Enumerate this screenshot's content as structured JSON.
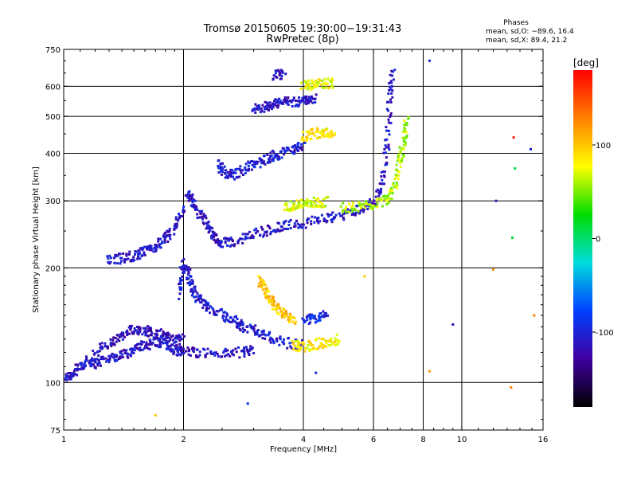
{
  "chart_data": {
    "type": "scatter",
    "title_line1": "Tromsø 20150605 19:30:00−19:31:43",
    "title_line2": "RwPretec (8p)",
    "stats": {
      "heading": "Phases",
      "line_o": "mean, sd,O: −89.6, 16.4",
      "line_x": "mean, sd,X:  89.4, 21.2"
    },
    "xlabel": "Frequency [MHz]",
    "ylabel": "Stationary phase Virtual Height [km]",
    "x_scale": "log",
    "y_scale": "log",
    "xlim": [
      1,
      16
    ],
    "ylim": [
      75,
      750
    ],
    "x_ticks": [
      1,
      2,
      4,
      6,
      8,
      10,
      16
    ],
    "y_ticks": [
      75,
      100,
      200,
      300,
      400,
      500,
      600,
      750
    ],
    "x_grid": [
      2,
      4,
      6,
      8,
      10
    ],
    "y_grid": [
      100,
      200,
      300,
      400,
      500,
      600
    ],
    "grid": true,
    "colorbar": {
      "label": "[deg]",
      "range": [
        -180,
        180
      ],
      "ticks": [
        100,
        0,
        -100
      ],
      "colors": [
        "#ff0000",
        "#ff8000",
        "#ffff00",
        "#00dd00",
        "#00dddd",
        "#0040ff",
        "#4000a0",
        "#000000"
      ]
    },
    "traces": [
      {
        "phase": -110,
        "points": [
          [
            1.0,
            103
          ],
          [
            1.05,
            105
          ],
          [
            1.1,
            110
          ],
          [
            1.15,
            114
          ],
          [
            1.2,
            112
          ],
          [
            1.3,
            116
          ],
          [
            1.4,
            118
          ],
          [
            1.5,
            122
          ],
          [
            1.6,
            125
          ],
          [
            1.7,
            128
          ],
          [
            1.8,
            126
          ],
          [
            1.9,
            122
          ],
          [
            2.0,
            121
          ],
          [
            2.2,
            120
          ],
          [
            2.5,
            119
          ],
          [
            2.8,
            120
          ],
          [
            3.0,
            122
          ]
        ]
      },
      {
        "phase": -115,
        "points": [
          [
            1.2,
            120
          ],
          [
            1.3,
            126
          ],
          [
            1.4,
            132
          ],
          [
            1.5,
            138
          ],
          [
            1.6,
            137
          ],
          [
            1.7,
            135
          ],
          [
            1.8,
            132
          ],
          [
            1.9,
            129
          ],
          [
            2.0,
            130
          ]
        ]
      },
      {
        "phase": -105,
        "points": [
          [
            1.95,
            170
          ],
          [
            2.0,
            205
          ],
          [
            2.05,
            195
          ],
          [
            2.1,
            175
          ],
          [
            2.2,
            165
          ],
          [
            2.3,
            158
          ],
          [
            2.5,
            150
          ],
          [
            2.7,
            145
          ],
          [
            2.8,
            140
          ],
          [
            3.0,
            138
          ],
          [
            3.2,
            133
          ],
          [
            3.5,
            128
          ],
          [
            4.0,
            125
          ]
        ]
      },
      {
        "phase": -110,
        "points": [
          [
            1.3,
            210
          ],
          [
            1.4,
            212
          ],
          [
            1.5,
            215
          ],
          [
            1.6,
            220
          ],
          [
            1.7,
            228
          ],
          [
            1.8,
            238
          ],
          [
            1.9,
            255
          ],
          [
            2.0,
            285
          ]
        ]
      },
      {
        "phase": -110,
        "points": [
          [
            2.05,
            310
          ],
          [
            2.1,
            300
          ],
          [
            2.2,
            275
          ],
          [
            2.3,
            255
          ],
          [
            2.4,
            240
          ],
          [
            2.5,
            232
          ],
          [
            2.7,
            235
          ],
          [
            3.0,
            245
          ],
          [
            3.3,
            252
          ],
          [
            3.6,
            258
          ],
          [
            4.0,
            262
          ],
          [
            4.5,
            268
          ],
          [
            5.0,
            275
          ],
          [
            5.5,
            285
          ],
          [
            6.0,
            295
          ],
          [
            6.3,
            330
          ],
          [
            6.5,
            420
          ],
          [
            6.6,
            560
          ],
          [
            6.7,
            660
          ]
        ]
      },
      {
        "phase": 70,
        "points": [
          [
            3.6,
            290
          ],
          [
            3.8,
            292
          ],
          [
            4.0,
            295
          ],
          [
            4.3,
            297
          ],
          [
            4.6,
            298
          ]
        ]
      },
      {
        "phase": 60,
        "points": [
          [
            5.0,
            288
          ],
          [
            5.5,
            290
          ],
          [
            6.0,
            293
          ],
          [
            6.5,
            305
          ],
          [
            6.8,
            330
          ],
          [
            7.0,
            380
          ],
          [
            7.2,
            440
          ],
          [
            7.3,
            500
          ]
        ]
      },
      {
        "phase": -105,
        "points": [
          [
            2.45,
            375
          ],
          [
            2.55,
            355
          ],
          [
            2.7,
            350
          ],
          [
            2.9,
            370
          ],
          [
            3.1,
            380
          ],
          [
            3.3,
            390
          ],
          [
            3.5,
            400
          ],
          [
            3.8,
            410
          ],
          [
            4.0,
            415
          ]
        ]
      },
      {
        "phase": 85,
        "points": [
          [
            4.0,
            440
          ],
          [
            4.2,
            450
          ],
          [
            4.5,
            455
          ],
          [
            4.8,
            452
          ]
        ]
      },
      {
        "phase": -110,
        "points": [
          [
            3.0,
            520
          ],
          [
            3.2,
            530
          ],
          [
            3.4,
            540
          ],
          [
            3.6,
            548
          ],
          [
            3.9,
            545
          ],
          [
            4.1,
            552
          ],
          [
            4.3,
            560
          ]
        ]
      },
      {
        "phase": 75,
        "points": [
          [
            4.0,
            600
          ],
          [
            4.2,
            605
          ],
          [
            4.5,
            610
          ],
          [
            4.8,
            612
          ]
        ]
      },
      {
        "phase": -108,
        "points": [
          [
            3.4,
            640
          ],
          [
            3.6,
            645
          ]
        ]
      },
      {
        "phase": 100,
        "points": [
          [
            3.1,
            185
          ],
          [
            3.2,
            178
          ],
          [
            3.3,
            165
          ],
          [
            3.4,
            158
          ],
          [
            3.6,
            150
          ],
          [
            3.8,
            145
          ]
        ]
      },
      {
        "phase": 85,
        "points": [
          [
            3.8,
            125
          ],
          [
            4.0,
            124
          ],
          [
            4.3,
            126
          ],
          [
            4.6,
            128
          ],
          [
            4.9,
            130
          ]
        ]
      },
      {
        "phase": -95,
        "points": [
          [
            4.0,
            145
          ],
          [
            4.3,
            148
          ],
          [
            4.6,
            150
          ]
        ]
      }
    ],
    "scattered": [
      {
        "x": 8.3,
        "y": 700,
        "phase": -100
      },
      {
        "x": 12.2,
        "y": 300,
        "phase": -110
      },
      {
        "x": 13.5,
        "y": 440,
        "phase": 170
      },
      {
        "x": 13.6,
        "y": 365,
        "phase": 10
      },
      {
        "x": 14.9,
        "y": 410,
        "phase": -100
      },
      {
        "x": 13.4,
        "y": 240,
        "phase": 15
      },
      {
        "x": 15.2,
        "y": 150,
        "phase": 130
      },
      {
        "x": 9.5,
        "y": 142,
        "phase": -120
      },
      {
        "x": 8.3,
        "y": 107,
        "phase": 120
      },
      {
        "x": 12.0,
        "y": 198,
        "phase": 120
      },
      {
        "x": 13.3,
        "y": 97,
        "phase": 130
      },
      {
        "x": 1.7,
        "y": 82,
        "phase": 100
      },
      {
        "x": 2.9,
        "y": 88,
        "phase": -90
      },
      {
        "x": 5.7,
        "y": 190,
        "phase": 100
      },
      {
        "x": 4.3,
        "y": 106,
        "phase": -100
      }
    ]
  }
}
